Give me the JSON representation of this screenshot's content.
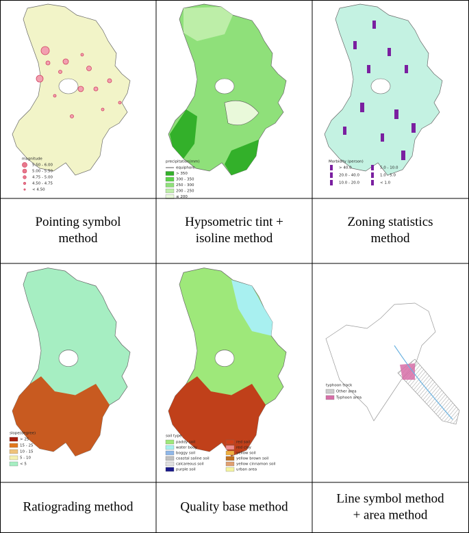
{
  "panels": [
    {
      "caption": [
        "Pointing symbol",
        "method"
      ],
      "legend_title": "magnitude",
      "legend": [
        {
          "label": "5.50 - 6.00",
          "color": "#e8788c",
          "kind": "circle"
        },
        {
          "label": "5.00 - 5.50",
          "color": "#e8788c",
          "kind": "circle"
        },
        {
          "label": "4.75 - 5.00",
          "color": "#e8788c",
          "kind": "circle"
        },
        {
          "label": "4.50 - 4.75",
          "color": "#e8788c",
          "kind": "circle"
        },
        {
          "label": "< 4.50",
          "color": "#e8788c",
          "kind": "circle"
        }
      ]
    },
    {
      "caption": [
        "Hypsometric tint +",
        "isoline method"
      ],
      "legend_title": "precipitation(mm)",
      "legend": [
        {
          "label": "equiphore",
          "color": "#555555",
          "kind": "line"
        },
        {
          "label": "> 350",
          "color": "#33b02a",
          "kind": "rect"
        },
        {
          "label": "300 - 350",
          "color": "#5cd24a",
          "kind": "rect"
        },
        {
          "label": "250 - 300",
          "color": "#8fe07a",
          "kind": "rect"
        },
        {
          "label": "200 - 250",
          "color": "#bdeea8",
          "kind": "rect"
        },
        {
          "label": "≤ 200",
          "color": "#e9f9da",
          "kind": "rect"
        }
      ]
    },
    {
      "caption": [
        "Zoning statistics",
        "method"
      ],
      "legend_title": "Morbidity (person)",
      "legend": [
        {
          "label": "> 40.0",
          "color": "#7a1fa0",
          "kind": "person"
        },
        {
          "label": "20.0 - 40.0",
          "color": "#7a1fa0",
          "kind": "person"
        },
        {
          "label": "10.0 - 20.0",
          "color": "#7a1fa0",
          "kind": "person"
        },
        {
          "label": "5.0 - 10.0",
          "color": "#7a1fa0",
          "kind": "person"
        },
        {
          "label": "1.0 - 5.0",
          "color": "#7a1fa0",
          "kind": "person"
        },
        {
          "label": "< 1.0",
          "color": "#7a1fa0",
          "kind": "person"
        }
      ]
    },
    {
      "caption": [
        "Ratiograding method"
      ],
      "legend_title": "slope(degree)",
      "legend": [
        {
          "label": "> 25",
          "color": "#a81e0c",
          "kind": "rect"
        },
        {
          "label": "15 - 25",
          "color": "#e2781e",
          "kind": "rect"
        },
        {
          "label": "10 - 15",
          "color": "#efc27a",
          "kind": "rect"
        },
        {
          "label": "5 - 10",
          "color": "#f4f0b0",
          "kind": "rect"
        },
        {
          "label": "< 5",
          "color": "#a6eec2",
          "kind": "rect"
        }
      ]
    },
    {
      "caption": [
        "Quality base method"
      ],
      "legend_title": "soil type",
      "legend": [
        {
          "label": "paddy soil",
          "color": "#9ee87a",
          "kind": "rect"
        },
        {
          "label": "water body",
          "color": "#a8f0f0",
          "kind": "rect"
        },
        {
          "label": "boggy soil",
          "color": "#8fb7e8",
          "kind": "rect"
        },
        {
          "label": "coastal saline soil",
          "color": "#c0c0c0",
          "kind": "rect"
        },
        {
          "label": "calcareous soil",
          "color": "#e0e0e0",
          "kind": "rect"
        },
        {
          "label": "purple soil",
          "color": "#1a1a8a",
          "kind": "rect"
        },
        {
          "label": "red soil",
          "color": "#d0401a",
          "kind": "rect"
        },
        {
          "label": "red clay",
          "color": "#f08a8a",
          "kind": "rect"
        },
        {
          "label": "yellow soil",
          "color": "#f0b040",
          "kind": "rect"
        },
        {
          "label": "yellow brown soil",
          "color": "#c07020",
          "kind": "rect"
        },
        {
          "label": "yellow cinnamon soil",
          "color": "#e0a070",
          "kind": "rect"
        },
        {
          "label": "urban area",
          "color": "#f4f4a0",
          "kind": "rect"
        }
      ]
    },
    {
      "caption": [
        "Line symbol method",
        "+ area method"
      ],
      "legend_title": "typhoon track",
      "legend": [
        {
          "label": "Other area",
          "color": "#cccccc",
          "kind": "rect"
        },
        {
          "label": "Typhoon area",
          "color": "#d76fa8",
          "kind": "rect"
        }
      ]
    }
  ]
}
